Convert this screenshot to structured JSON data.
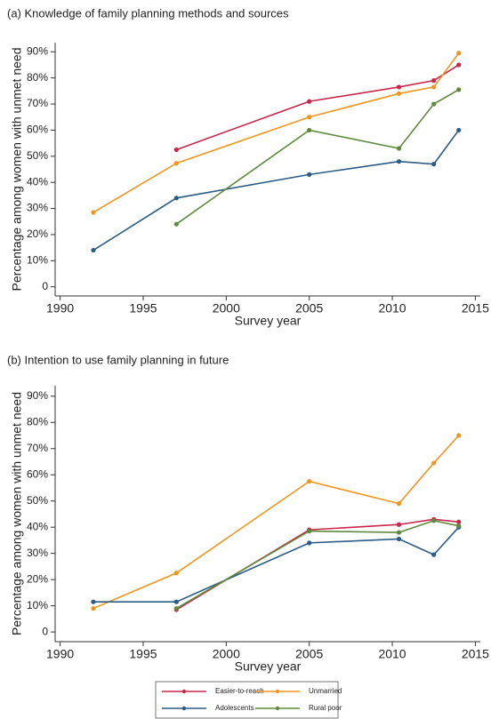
{
  "chart_data": [
    {
      "type": "line",
      "title": "(a) Knowledge of family planning methods and sources",
      "x_label": "Survey year",
      "y_label": "Percentage among women with unmet need",
      "x": [
        1992,
        1997,
        2005,
        2010.4,
        2012.5,
        2014
      ],
      "series": [
        {
          "name": "Easier-to-reach",
          "color": "#c8264b",
          "values": [
            null,
            52.5,
            71,
            76.5,
            79,
            85
          ]
        },
        {
          "name": "Unmarried",
          "color": "#f0961e",
          "values": [
            28.5,
            47.3,
            65,
            74,
            76.5,
            89.5
          ]
        },
        {
          "name": "Adolescents",
          "color": "#2a5b84",
          "values": [
            14,
            34,
            43,
            48,
            47,
            60
          ]
        },
        {
          "name": "Rural poor",
          "color": "#5f8a3e",
          "values": [
            null,
            24,
            60,
            53,
            70,
            75.5
          ]
        }
      ],
      "xlim": [
        1989.7,
        2015.3
      ],
      "xticks": [
        1990,
        1995,
        2000,
        2005,
        2010,
        2015
      ],
      "ylim": [
        -3.5,
        93.5
      ],
      "yticks": [
        0,
        {
          "value": 10,
          "label": "10%"
        },
        {
          "value": 20,
          "label": "20%"
        },
        {
          "value": 30,
          "label": "30%"
        },
        {
          "value": 40,
          "label": "40%"
        },
        {
          "value": 50,
          "label": "50%"
        },
        {
          "value": 60,
          "label": "60%"
        },
        {
          "value": 70,
          "label": "70%"
        },
        {
          "value": 80,
          "label": "80%"
        },
        {
          "value": 90,
          "label": "90%"
        }
      ]
    },
    {
      "type": "line",
      "title": "(b) Intention to use family planning in future",
      "x_label": "Survey year",
      "y_label": "Percentage among women with unmet need",
      "x": [
        1992,
        1997,
        2005,
        2010.4,
        2012.5,
        2014
      ],
      "series": [
        {
          "name": "Easier-to-reach",
          "color": "#c8264b",
          "values": [
            null,
            8.5,
            39,
            41,
            43,
            42
          ]
        },
        {
          "name": "Unmarried",
          "color": "#f0961e",
          "values": [
            9,
            22.5,
            57.5,
            49,
            64.5,
            75
          ]
        },
        {
          "name": "Adolescents",
          "color": "#2a5b84",
          "values": [
            11.5,
            11.5,
            34,
            35.5,
            29.5,
            40
          ]
        },
        {
          "name": "Rural poor",
          "color": "#5f8a3e",
          "values": [
            null,
            9,
            38.5,
            38,
            42.5,
            40.5
          ]
        }
      ],
      "xlim": [
        1989.7,
        2015.3
      ],
      "xticks": [
        1990,
        1995,
        2000,
        2005,
        2010,
        2015
      ],
      "ylim": [
        -3.7,
        94
      ],
      "yticks": [
        0,
        {
          "value": 10,
          "label": "10%"
        },
        {
          "value": 20,
          "label": "20%"
        },
        {
          "value": 30,
          "label": "30%"
        },
        {
          "value": 40,
          "label": "40%"
        },
        {
          "value": 50,
          "label": "50%"
        },
        {
          "value": 60,
          "label": "60%"
        },
        {
          "value": 70,
          "label": "70%"
        },
        {
          "value": 80,
          "label": "80%"
        },
        {
          "value": 90,
          "label": "90%"
        }
      ]
    }
  ]
}
